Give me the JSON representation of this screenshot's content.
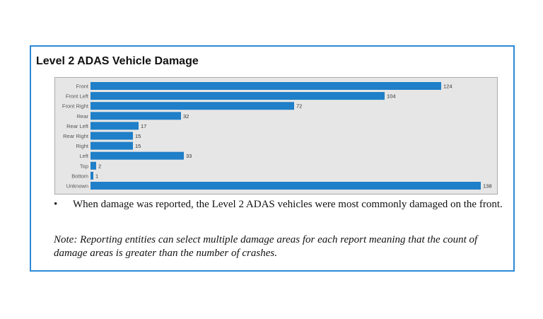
{
  "title": "Level 2 ADAS Vehicle Damage",
  "chart_data": {
    "type": "bar",
    "orientation": "horizontal",
    "categories": [
      "Front",
      "Front Left",
      "Front Right",
      "Rear",
      "Rear Left",
      "Rear Right",
      "Right",
      "Left",
      "Top",
      "Bottom",
      "Unknown"
    ],
    "values": [
      124,
      104,
      72,
      32,
      17,
      15,
      15,
      33,
      2,
      1,
      138
    ],
    "xlim": [
      0,
      138
    ],
    "grid": false,
    "bar_color": "#1f7fc8",
    "background_color": "#e6e6e6"
  },
  "bullet": {
    "symbol": "•",
    "text": "When damage was reported, the Level 2 ADAS vehicles were most commonly damaged on the front."
  },
  "note": "Note: Reporting entities can select multiple damage areas for each report meaning that the count of damage areas is greater than the number of crashes.",
  "colors": {
    "border": "#2e8ad8"
  }
}
